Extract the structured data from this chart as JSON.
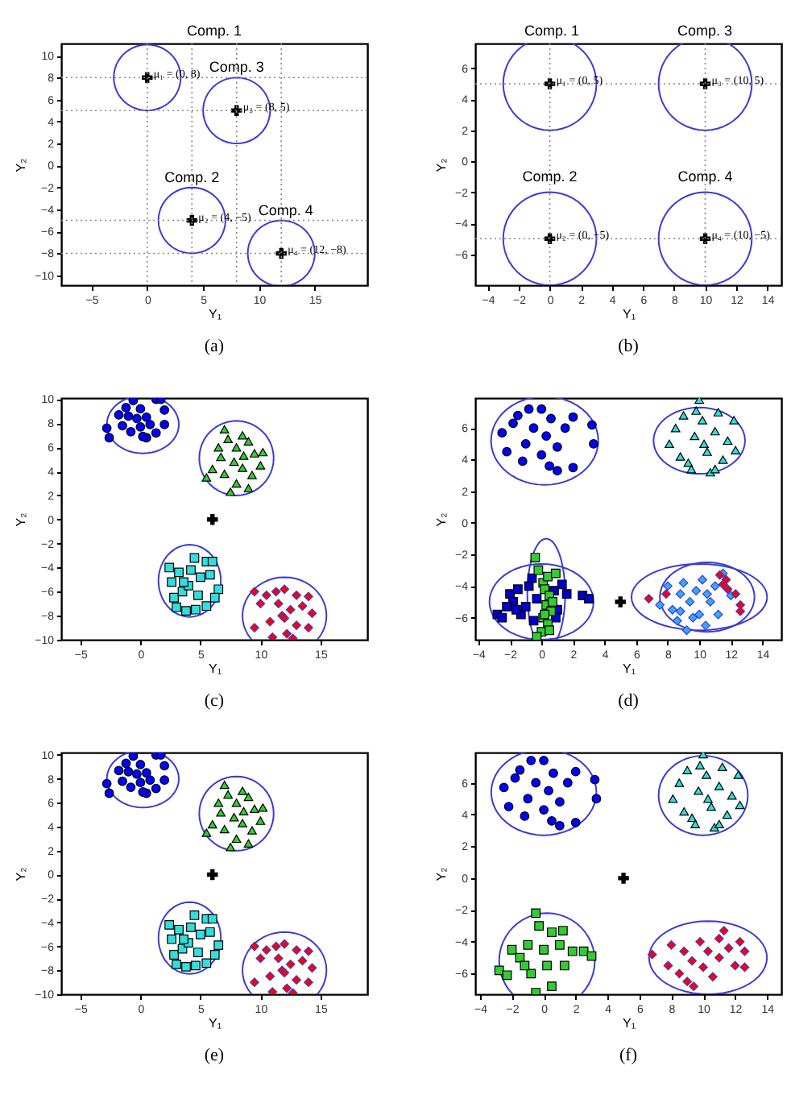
{
  "chart_data": [
    {
      "type": "scatter",
      "title": "(a)",
      "xlabel": "Y₁",
      "ylabel": "Y₂",
      "xlim": [
        -7.7,
        19.7
      ],
      "ylim": [
        -10.9,
        11.1
      ],
      "xticks": [
        -5,
        0,
        5,
        10,
        15
      ],
      "yticks": [
        -10,
        -8,
        -6,
        -4,
        -2,
        0,
        2,
        4,
        6,
        8,
        10
      ],
      "series": [
        {
          "type": "scatter",
          "marker": "cross",
          "color": "#000000",
          "x": [
            0,
            4,
            8,
            12
          ],
          "values": [
            8,
            -5,
            5,
            -8
          ]
        }
      ],
      "ref_lines": [
        {
          "axis": "x",
          "value": 0,
          "line_style": "dotted"
        },
        {
          "axis": "x",
          "value": 4,
          "line_style": "dotted"
        },
        {
          "axis": "x",
          "value": 8,
          "line_style": "dotted"
        },
        {
          "axis": "x",
          "value": 12,
          "line_style": "dotted"
        },
        {
          "axis": "y",
          "value": 8,
          "line_style": "dotted"
        },
        {
          "axis": "y",
          "value": 5,
          "line_style": "dotted"
        },
        {
          "axis": "y",
          "value": -5,
          "line_style": "dotted"
        },
        {
          "axis": "y",
          "value": -8,
          "line_style": "dotted"
        }
      ],
      "annotations": [
        "Comp. 1",
        {
          "text": "Comp. 3",
          "x": 8,
          "y": 9
        },
        {
          "text": "Comp. 2",
          "x": 4,
          "y": -1.1
        },
        {
          "text": "Comp. 4",
          "x": 12.4,
          "y": -4.1
        },
        {
          "text": "μ₁ = (0, 8)",
          "x": 0,
          "y": 8
        },
        {
          "text": "μ₃ = (8, 5)",
          "x": 8,
          "y": 5
        },
        {
          "text": "μ₂ = (4, −5)",
          "x": 4,
          "y": -5
        },
        {
          "text": "μ₄ = (12, −8)",
          "x": 12,
          "y": -8
        }
      ]
    },
    {
      "type": "scatter",
      "title": "(b)",
      "xlabel": "Y₁",
      "ylabel": "Y₂",
      "xlim": [
        -4.8,
        14.9
      ],
      "ylim": [
        -8,
        7.6
      ],
      "xticks": [
        -4,
        -2,
        0,
        2,
        4,
        6,
        8,
        10,
        12,
        14
      ],
      "yticks": [
        -6,
        -4,
        -2,
        0,
        2,
        4,
        6
      ],
      "series": [
        {
          "type": "scatter",
          "marker": "cross",
          "color": "#000000",
          "x": [
            0,
            0,
            10,
            10
          ],
          "values": [
            5,
            -5,
            5,
            -5
          ]
        }
      ],
      "ref_lines": [
        {
          "axis": "x",
          "value": 0,
          "line_style": "dotted"
        },
        {
          "axis": "x",
          "value": 10,
          "line_style": "dotted"
        },
        {
          "axis": "y",
          "value": 5,
          "line_style": "dotted"
        },
        {
          "axis": "y",
          "value": -5,
          "line_style": "dotted"
        }
      ],
      "annotations": [
        "Comp. 1",
        "Comp. 3",
        {
          "text": "Comp. 2",
          "x": 0,
          "y": -1
        },
        {
          "text": "Comp. 4",
          "x": 10,
          "y": -1
        },
        {
          "text": "μ₁ = (0, 5)",
          "x": 0,
          "y": 5
        },
        {
          "text": "μ₂ = (0, −5)",
          "x": 0,
          "y": -5
        },
        {
          "text": "μ₃ = (10, 5)",
          "x": 10,
          "y": 5
        },
        {
          "text": "μ₄ = (10, −5)",
          "x": 10,
          "y": -5
        }
      ]
    },
    {
      "type": "scatter",
      "title": "(c)",
      "xlabel": "Y₁",
      "ylabel": "Y₂",
      "xlim": [
        -6.6,
        18.9
      ],
      "ylim": [
        -10,
        10.1
      ],
      "xticks": [
        -5,
        0,
        5,
        10,
        15
      ],
      "yticks": [
        -10,
        -8,
        -6,
        -4,
        -2,
        0,
        2,
        4,
        6,
        8,
        10
      ],
      "series": [
        {
          "type": "scatter",
          "marker": "circle",
          "color": "#0000ff",
          "x": [
            -2.8,
            -2.6,
            -1.8,
            -1.2,
            -0.6,
            0,
            0.5,
            1.3,
            1.7,
            2,
            2,
            1.3,
            0.5,
            0,
            -0.8,
            -1.5,
            -0.3,
            0.8,
            0.2,
            -1
          ],
          "values": [
            7.6,
            6.8,
            8.7,
            9.3,
            9.9,
            9.2,
            8.5,
            10,
            10,
            9.1,
            7.9,
            7.2,
            6.8,
            7.7,
            7.3,
            7.8,
            8.4,
            7.9,
            6.9,
            8.6
          ]
        },
        {
          "type": "scatter",
          "marker": "triangle",
          "color": "#33cc33",
          "x": [
            5.5,
            6,
            6.5,
            7,
            7.3,
            8,
            8.5,
            9,
            9.5,
            10.2,
            10,
            9.3,
            8.5,
            8,
            7.5,
            7,
            6.7,
            7.8,
            8.6,
            9
          ],
          "values": [
            3.5,
            4.2,
            6,
            7.5,
            6.7,
            6,
            7,
            6.5,
            5.5,
            5.6,
            4.5,
            3.7,
            4.3,
            3,
            2.3,
            3.8,
            5.2,
            4.8,
            5.3,
            2.6
          ]
        },
        {
          "type": "scatter",
          "marker": "square",
          "color": "#33dddd",
          "x": [
            2.4,
            2.6,
            2.8,
            3,
            3.5,
            3.8,
            4.2,
            4.5,
            5,
            5.5,
            6,
            6.5,
            6.2,
            5.5,
            4.8,
            4,
            3.2,
            4.6,
            5.8,
            3.6
          ],
          "values": [
            -4,
            -5.2,
            -6.5,
            -7.3,
            -6,
            -7.6,
            -4.2,
            -3.2,
            -4.8,
            -3.5,
            -3.5,
            -5.8,
            -6.5,
            -7.2,
            -6.3,
            -5.5,
            -4.4,
            -7.5,
            -4.6,
            -5.2
          ]
        },
        {
          "type": "scatter",
          "marker": "diamond",
          "color": "#ff0000",
          "x": [
            9.5,
            9.5,
            10,
            10.5,
            10.8,
            11,
            11.5,
            11.8,
            12,
            12.2,
            12.5,
            13,
            13,
            13.5,
            14,
            14,
            14.3,
            11.3,
            12.7,
            12
          ],
          "values": [
            -6,
            -9,
            -7,
            -6.3,
            -8.5,
            -9.8,
            -7,
            -8,
            -5.8,
            -9.5,
            -7.5,
            -6.3,
            -8.8,
            -7.2,
            -6.4,
            -9,
            -7.8,
            -6,
            -9.9,
            -8.2
          ]
        },
        {
          "type": "scatter",
          "marker": "cross",
          "color": "#000000",
          "x": [
            6
          ],
          "values": [
            0
          ]
        }
      ]
    },
    {
      "type": "scatter",
      "title": "(d)",
      "xlabel": "Y₁",
      "ylabel": "Y₂",
      "xlim": [
        -4.2,
        15.2
      ],
      "ylim": [
        -7.4,
        7.9
      ],
      "xticks": [
        -4,
        -2,
        0,
        2,
        4,
        6,
        8,
        10,
        12,
        14
      ],
      "yticks": [
        -6,
        -4,
        -2,
        0,
        2,
        4,
        6
      ],
      "series": [
        {
          "type": "scatter",
          "marker": "circle",
          "color": "#0000ff",
          "x": [
            -2.5,
            -2.2,
            -1.8,
            -1.5,
            -1,
            -0.8,
            -0.5,
            0,
            0,
            0.3,
            0.6,
            1,
            1,
            1.5,
            2,
            2,
            3.2,
            3.3,
            -1.2,
            0.5
          ],
          "values": [
            5.7,
            4.5,
            6.3,
            6.8,
            5,
            7.2,
            6,
            4.3,
            7.2,
            5.5,
            6.6,
            3.3,
            4.8,
            6,
            3.5,
            6.7,
            6.2,
            5,
            3.9,
            3.6
          ]
        },
        {
          "type": "scatter",
          "marker": "triangle",
          "color": "#33dddd",
          "x": [
            8.1,
            8.5,
            8.8,
            9,
            9.3,
            9.7,
            10,
            10.2,
            10.5,
            10.7,
            11,
            11.2,
            11.5,
            11.8,
            12.2,
            12.3,
            9.5,
            10.3,
            11,
            9.8
          ],
          "values": [
            5,
            6,
            4.2,
            6.8,
            3.8,
            5.5,
            7.8,
            6.5,
            4.5,
            3.2,
            5.8,
            7,
            4,
            5.2,
            6.5,
            4.6,
            3.4,
            5,
            3.4,
            7.1
          ]
        },
        {
          "type": "scatter",
          "marker": "square",
          "color": "#0000cc",
          "x": [
            -2.8,
            -2.5,
            -2,
            -1.8,
            -1.5,
            -1.3,
            -1,
            -0.8,
            -0.5,
            -0.3,
            0.8,
            1,
            1.3,
            1.6,
            2.6,
            3,
            -1.6,
            -0.6,
            0.9,
            -2.2
          ],
          "values": [
            -5.8,
            -6,
            -4.5,
            -5,
            -4.2,
            -5.8,
            -5.3,
            -4,
            -6.2,
            -4.8,
            -4.3,
            -5.5,
            -3.9,
            -4.5,
            -4.6,
            -4.8,
            -5.5,
            -3.5,
            -6,
            -5.3
          ]
        },
        {
          "type": "scatter",
          "marker": "square",
          "color": "#33cc33",
          "x": [
            -0.4,
            -0.2,
            0.1,
            0.4,
            0.9,
            0.2,
            0.5,
            0.3,
            0.6,
            0.1,
            0.4,
            0,
            0.5,
            -0.3,
            0.7,
            0.2
          ],
          "values": [
            -2.2,
            -3,
            -3.8,
            -3.4,
            -3.2,
            -4.2,
            -4.6,
            -5.2,
            -5.6,
            -6,
            -6.4,
            -6.9,
            -6.8,
            -7.2,
            -5,
            -5.8
          ]
        },
        {
          "type": "scatter",
          "marker": "diamond",
          "color": "#33aaff",
          "x": [
            7.5,
            8,
            8.3,
            8.6,
            8.8,
            9,
            9.2,
            9.4,
            9.8,
            10,
            10.2,
            10.4,
            10.7,
            11,
            11.2,
            11.5,
            12,
            9.6,
            8.8,
            10.5
          ],
          "values": [
            -5.2,
            -4,
            -5.5,
            -6.2,
            -4.5,
            -3.8,
            -6.8,
            -5,
            -4.3,
            -5.8,
            -3.6,
            -6.5,
            -5,
            -4,
            -5.8,
            -3.2,
            -4.6,
            -6,
            -5.6,
            -4.5
          ]
        },
        {
          "type": "scatter",
          "marker": "diamond",
          "color": "#ff0000",
          "x": [
            6.8,
            7.9,
            11.3,
            11.5,
            11.8,
            12.3,
            12.6,
            12.6,
            11.7
          ],
          "values": [
            -4.8,
            -4.5,
            -3.3,
            -3.9,
            -4.2,
            -4.5,
            -5.2,
            -5.6,
            -3.6
          ]
        },
        {
          "type": "scatter",
          "marker": "cross",
          "color": "#000000",
          "x": [
            5
          ],
          "values": [
            -5
          ]
        }
      ]
    },
    {
      "type": "scatter",
      "title": "(e)",
      "xlabel": "Y₁",
      "ylabel": "Y₂",
      "xlim": [
        -6.6,
        18.9
      ],
      "ylim": [
        -10,
        10.2
      ],
      "xticks": [
        -5,
        0,
        5,
        10,
        15
      ],
      "yticks": [
        -10,
        -8,
        -6,
        -4,
        -2,
        0,
        2,
        4,
        6,
        8,
        10
      ],
      "series": [
        {
          "type": "scatter",
          "marker": "circle",
          "color": "#0000ff",
          "x": [
            -2.8,
            -2.6,
            -1.8,
            -1.2,
            -0.6,
            0,
            0.5,
            1.3,
            1.7,
            2,
            2,
            1.3,
            0.5,
            0,
            -0.8,
            -1.5,
            -0.3,
            0.8,
            0.2,
            -1
          ],
          "values": [
            7.6,
            6.8,
            8.7,
            9.3,
            9.9,
            9.2,
            8.5,
            10,
            10,
            9.1,
            7.9,
            7.2,
            6.8,
            7.7,
            7.3,
            7.8,
            8.4,
            7.9,
            6.9,
            8.6
          ]
        },
        {
          "type": "scatter",
          "marker": "triangle",
          "color": "#33cc33",
          "x": [
            5.5,
            6,
            6.5,
            7,
            7.3,
            8,
            8.5,
            9,
            9.5,
            10.2,
            10,
            9.3,
            8.5,
            8,
            7.5,
            7,
            6.7,
            7.8,
            8.6,
            9
          ],
          "values": [
            3.5,
            4.2,
            6,
            7.5,
            6.7,
            6,
            7,
            6.5,
            5.5,
            5.6,
            4.5,
            3.7,
            4.3,
            3,
            2.3,
            3.8,
            5.2,
            4.8,
            5.3,
            2.6
          ]
        },
        {
          "type": "scatter",
          "marker": "square",
          "color": "#33dddd",
          "x": [
            2.4,
            2.6,
            2.8,
            3,
            3.5,
            3.8,
            4.2,
            4.5,
            5,
            5.5,
            6,
            6.5,
            6.2,
            5.5,
            4.8,
            4,
            3.2,
            4.6,
            5.8,
            3.6
          ],
          "values": [
            -4.2,
            -5.4,
            -6.7,
            -7.5,
            -6.2,
            -7.7,
            -4.4,
            -3.4,
            -5,
            -3.7,
            -3.7,
            -5.9,
            -6.7,
            -7.4,
            -6.5,
            -5.7,
            -4.6,
            -7.6,
            -4.8,
            -5.4
          ]
        },
        {
          "type": "scatter",
          "marker": "diamond",
          "color": "#ff0000",
          "x": [
            9.5,
            9.5,
            10,
            10.5,
            10.8,
            11,
            11.5,
            11.8,
            12,
            12.2,
            12.5,
            13,
            13,
            13.5,
            14,
            14,
            14.3,
            11.3,
            12.7,
            12
          ],
          "values": [
            -6,
            -9,
            -7,
            -6.3,
            -8.5,
            -9.8,
            -7,
            -8,
            -5.8,
            -9.5,
            -7.5,
            -6.3,
            -8.8,
            -7.2,
            -6.4,
            -9,
            -7.8,
            -6,
            -9.9,
            -8.2
          ]
        },
        {
          "type": "scatter",
          "marker": "cross",
          "color": "#000000",
          "x": [
            6
          ],
          "values": [
            0
          ]
        }
      ]
    },
    {
      "type": "scatter",
      "title": "(f)",
      "xlabel": "Y₁",
      "ylabel": "Y₂",
      "xlim": [
        -4.3,
        14.9
      ],
      "ylim": [
        -7.3,
        7.9
      ],
      "xticks": [
        -4,
        -2,
        0,
        2,
        4,
        6,
        8,
        10,
        12,
        14
      ],
      "yticks": [
        -6,
        -4,
        -2,
        0,
        2,
        4,
        6
      ],
      "series": [
        {
          "type": "scatter",
          "marker": "circle",
          "color": "#0000ff",
          "x": [
            -2.5,
            -2.2,
            -1.8,
            -1.5,
            -1,
            -0.8,
            -0.5,
            0,
            0,
            0.3,
            0.6,
            1,
            1,
            1.5,
            2,
            2,
            3.2,
            3.3,
            -1.2,
            0.5
          ],
          "values": [
            5.7,
            4.5,
            6.3,
            6.8,
            5,
            7.4,
            6,
            4.3,
            7.4,
            5.5,
            6.6,
            3.3,
            4.8,
            6,
            3.5,
            6.7,
            6.2,
            5,
            3.9,
            3.6
          ]
        },
        {
          "type": "scatter",
          "marker": "triangle",
          "color": "#33dddd",
          "x": [
            8.1,
            8.5,
            8.8,
            9,
            9.3,
            9.7,
            10,
            10.2,
            10.5,
            10.7,
            11,
            11.2,
            11.5,
            11.8,
            12.2,
            12.3,
            9.5,
            10.3,
            11,
            9.8
          ],
          "values": [
            5,
            6,
            4.2,
            6.8,
            3.8,
            5.5,
            7.8,
            6.5,
            4.5,
            3.2,
            5.8,
            7,
            4,
            5.2,
            6.5,
            4.6,
            3.4,
            5,
            3.4,
            7.1
          ]
        },
        {
          "type": "scatter",
          "marker": "square",
          "color": "#33cc33",
          "x": [
            -2.8,
            -2.3,
            -2,
            -1.5,
            -1,
            -0.8,
            -0.5,
            -0.3,
            -0.5,
            0,
            0.2,
            0.5,
            0.5,
            1,
            1.2,
            1.3,
            1.8,
            2.5,
            3,
            -1.2
          ],
          "values": [
            -5.8,
            -6.1,
            -4.5,
            -5,
            -4.2,
            -6,
            -2.2,
            -3,
            -7.2,
            -4.5,
            -5.5,
            -3.4,
            -6.8,
            -4.2,
            -3.3,
            -5.5,
            -4.6,
            -4.6,
            -4.9,
            -5.5
          ]
        },
        {
          "type": "scatter",
          "marker": "diamond",
          "color": "#ff0000",
          "x": [
            6.8,
            7.8,
            8,
            8.5,
            8.8,
            9,
            9.3,
            9.4,
            9.8,
            10,
            10.3,
            10.6,
            11,
            11,
            11.3,
            11.6,
            12,
            12.3,
            12.6,
            12.6
          ],
          "values": [
            -4.8,
            -5.5,
            -4.2,
            -6,
            -4.6,
            -6.5,
            -5.2,
            -6.8,
            -4,
            -5.6,
            -4.6,
            -6.2,
            -3.8,
            -5,
            -3.3,
            -4.4,
            -5.5,
            -4,
            -4.6,
            -5.6
          ]
        },
        {
          "type": "scatter",
          "marker": "cross",
          "color": "#000000",
          "x": [
            5
          ],
          "values": [
            0
          ]
        }
      ]
    }
  ]
}
